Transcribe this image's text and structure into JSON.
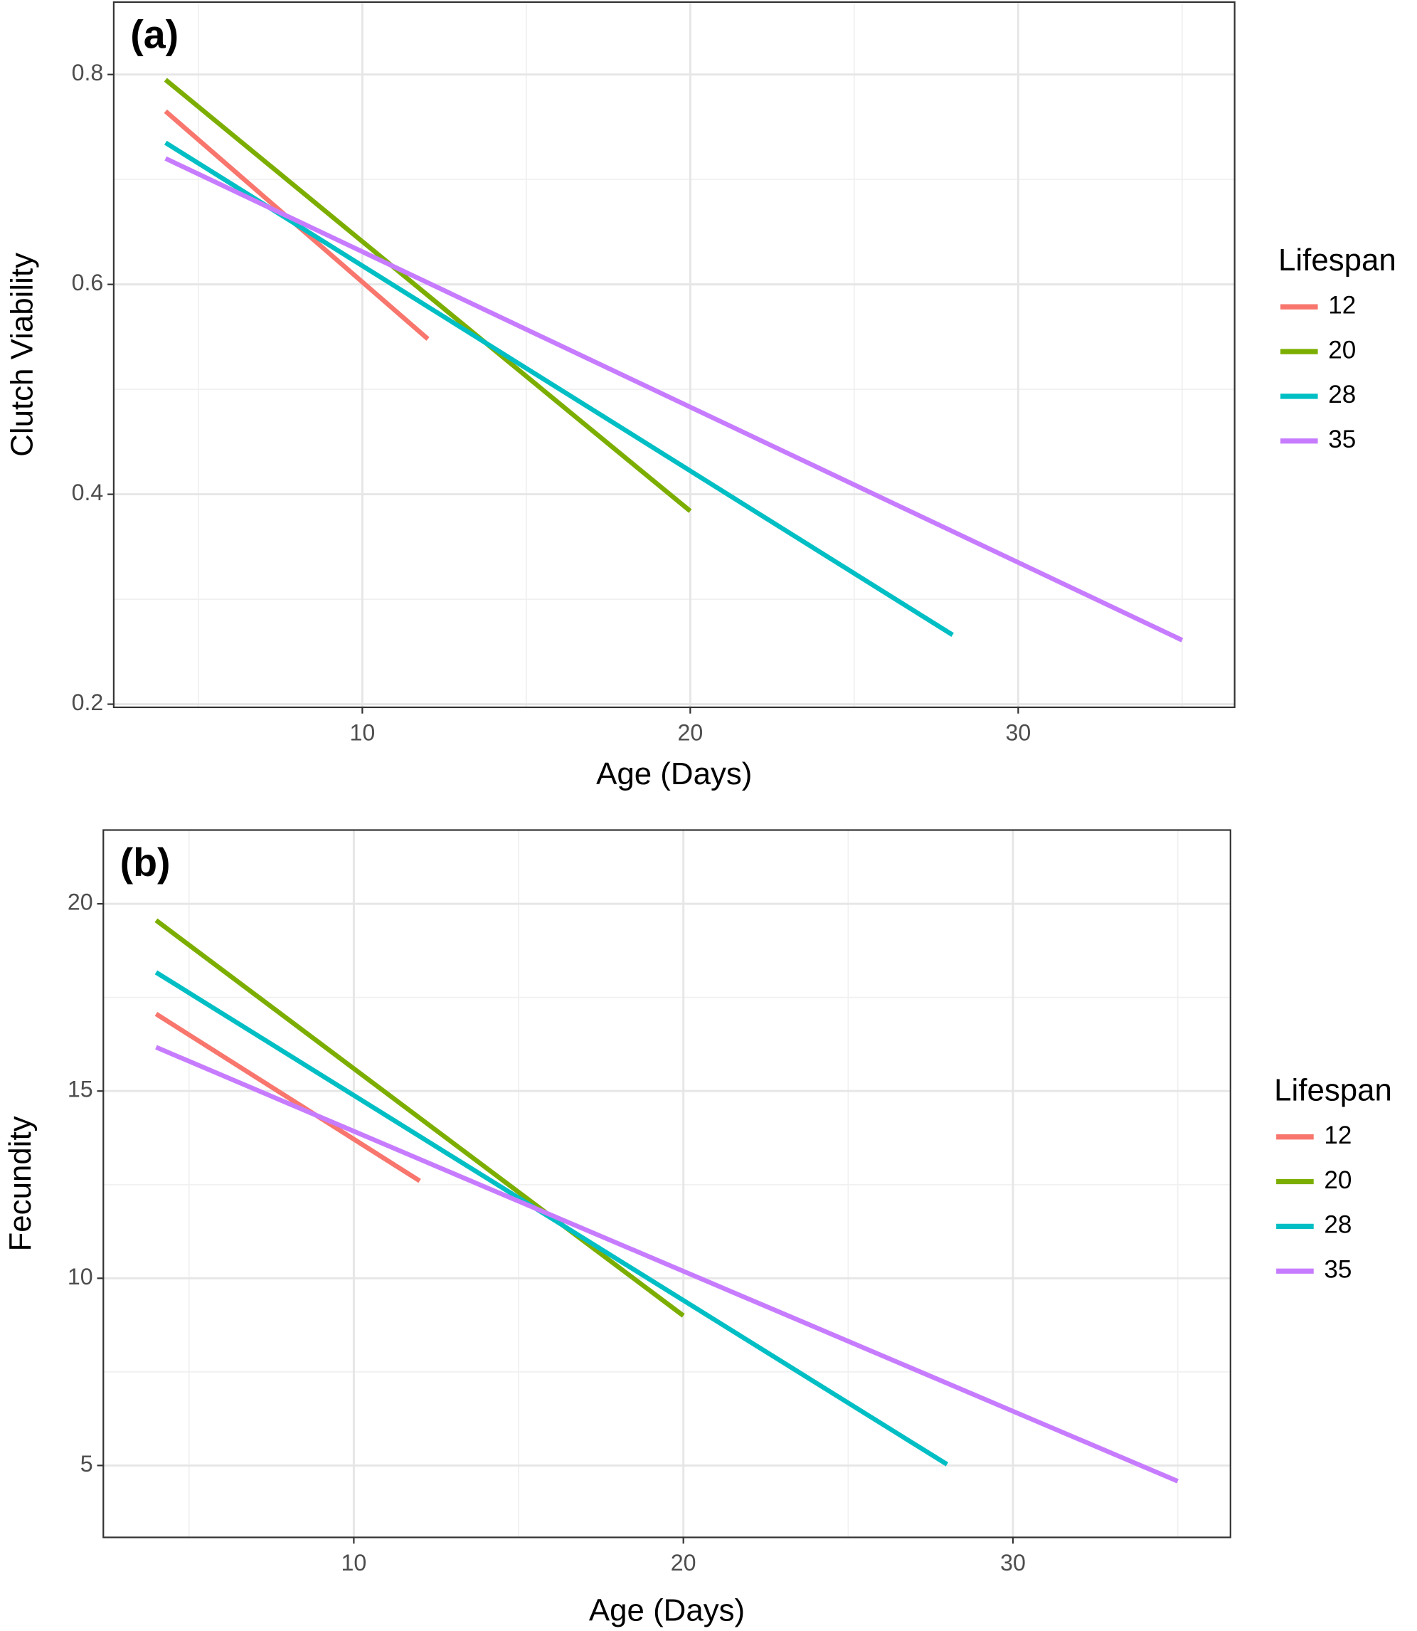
{
  "chart_data": [
    {
      "type": "line",
      "title": "(a)",
      "x_label": "Age (Days)",
      "y_label": "Clutch Viability",
      "xlim": [
        2.42,
        36.6
      ],
      "ylim": [
        0.197,
        0.869
      ],
      "xticks": [
        10,
        20,
        30
      ],
      "yticks": [
        0.2,
        0.4,
        0.6,
        0.8
      ],
      "x_minor_ticks": [
        5,
        15,
        25,
        35
      ],
      "y_minor_ticks": [
        0.3,
        0.5,
        0.7
      ],
      "grid": true,
      "legend_title": "Lifespan",
      "legend": "right",
      "series": [
        {
          "name": "12",
          "color": "#F8766D",
          "x": [
            4,
            12
          ],
          "values": [
            0.765,
            0.548
          ]
        },
        {
          "name": "20",
          "color": "#7CAE00",
          "x": [
            4,
            20
          ],
          "values": [
            0.795,
            0.384
          ]
        },
        {
          "name": "28",
          "color": "#00BFC4",
          "x": [
            4,
            28
          ],
          "values": [
            0.735,
            0.266
          ]
        },
        {
          "name": "35",
          "color": "#C77CFF",
          "x": [
            4,
            35
          ],
          "values": [
            0.72,
            0.261
          ]
        }
      ]
    },
    {
      "type": "line",
      "title": "(b)",
      "x_label": "Age (Days)",
      "y_label": "Fecundity",
      "xlim": [
        2.4,
        36.6
      ],
      "ylim": [
        3.08,
        21.97
      ],
      "xticks": [
        10,
        20,
        30
      ],
      "yticks": [
        5,
        10,
        15,
        20
      ],
      "x_minor_ticks": [
        5,
        15,
        25,
        35
      ],
      "y_minor_ticks": [
        7.5,
        12.5,
        17.5
      ],
      "grid": true,
      "legend_title": "Lifespan",
      "legend": "right",
      "series": [
        {
          "name": "12",
          "color": "#F8766D",
          "x": [
            4,
            12
          ],
          "values": [
            17.06,
            12.6
          ]
        },
        {
          "name": "20",
          "color": "#7CAE00",
          "x": [
            4,
            20
          ],
          "values": [
            19.56,
            9.0
          ]
        },
        {
          "name": "28",
          "color": "#00BFC4",
          "x": [
            4,
            28
          ],
          "values": [
            18.17,
            5.03
          ]
        },
        {
          "name": "35",
          "color": "#C77CFF",
          "x": [
            4,
            35
          ],
          "values": [
            16.17,
            4.58
          ]
        }
      ]
    }
  ]
}
